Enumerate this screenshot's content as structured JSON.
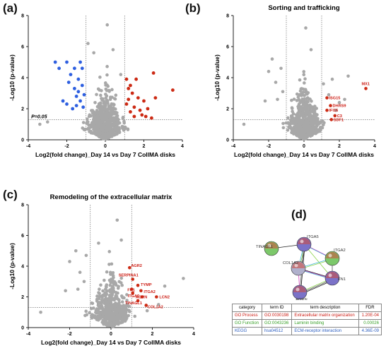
{
  "panels": {
    "a": {
      "letter": "(a)"
    },
    "b": {
      "letter": "(b)",
      "title": "Sorting and trafficking"
    },
    "c": {
      "letter": "(c)",
      "title": "Remodeling of the extracellular matrix"
    },
    "d": {
      "letter": "(d)"
    }
  },
  "common_axes": {
    "xlabel": "Log2(fold change)_Day 14 vs Day 7 CollMA disks",
    "ylabel": "-Log10 (p-value)",
    "xlim": [
      -4,
      4
    ],
    "ylim": [
      0,
      8
    ],
    "xticks": [
      "-4",
      "-2",
      "0",
      "2",
      "4"
    ],
    "yticks": [
      "0",
      "2",
      "4",
      "6",
      "8"
    ],
    "threshold_label": "P=0.05"
  },
  "colors": {
    "grey": "#a8a8a8",
    "down": "#2e5fe0",
    "up": "#cc2a14",
    "label_red": "#cc1b12"
  },
  "chart_data": [
    {
      "panel": "a",
      "type": "scatter",
      "title": "",
      "xlabel": "Log2(fold change)_Day 14 vs Day 7 CollMA disks",
      "ylabel": "-Log10 (p-value)",
      "xlim": [
        -4,
        4
      ],
      "ylim": [
        0,
        8
      ],
      "threshold_y": 1.3,
      "threshold_x": [
        -1,
        1
      ],
      "series": [
        {
          "name": "down",
          "color": "#2e5fe0",
          "points": [
            [
              -2.6,
              5.0
            ],
            [
              -2.4,
              4.6
            ],
            [
              -2.0,
              5.0
            ],
            [
              -1.9,
              3.7
            ],
            [
              -1.8,
              4.2
            ],
            [
              -1.6,
              4.6
            ],
            [
              -1.6,
              3.3
            ],
            [
              -1.5,
              2.8
            ],
            [
              -1.5,
              2.2
            ],
            [
              -1.4,
              3.9
            ],
            [
              -1.4,
              3.1
            ],
            [
              -1.3,
              5.0
            ],
            [
              -1.3,
              2.5
            ],
            [
              -1.2,
              4.6
            ],
            [
              -1.2,
              3.5
            ],
            [
              -1.15,
              2.1
            ],
            [
              -1.1,
              2.9
            ],
            [
              -2.2,
              2.5
            ],
            [
              -2.0,
              2.3
            ],
            [
              -1.7,
              2.0
            ]
          ]
        },
        {
          "name": "up",
          "color": "#cc2a14",
          "points": [
            [
              1.1,
              3.9
            ],
            [
              1.1,
              2.3
            ],
            [
              1.2,
              3.3
            ],
            [
              1.2,
              2.6
            ],
            [
              1.3,
              1.8
            ],
            [
              1.4,
              3.0
            ],
            [
              1.5,
              2.1
            ],
            [
              1.5,
              1.5
            ],
            [
              1.6,
              3.9
            ],
            [
              1.7,
              2.7
            ],
            [
              1.8,
              1.9
            ],
            [
              1.9,
              1.6
            ],
            [
              2.0,
              2.5
            ],
            [
              2.1,
              1.5
            ],
            [
              2.2,
              2.0
            ],
            [
              2.4,
              1.4
            ],
            [
              2.5,
              4.3
            ],
            [
              2.6,
              2.7
            ],
            [
              1.3,
              3.5
            ],
            [
              3.5,
              3.2
            ]
          ]
        }
      ]
    },
    {
      "panel": "b",
      "type": "scatter",
      "title": "Sorting and trafficking",
      "xlabel": "Log2(fold change)_Day 14 vs Day 7 CollMA disks",
      "ylabel": "-Log10 (p-value)",
      "xlim": [
        -4,
        4
      ],
      "ylim": [
        0,
        8
      ],
      "threshold_y": 1.3,
      "threshold_x": [
        -1,
        1
      ],
      "highlighted": [
        {
          "label": "MX1",
          "x": 3.5,
          "y": 3.3
        },
        {
          "label": "ISG15",
          "x": 1.3,
          "y": 2.7
        },
        {
          "label": "DHRS9",
          "x": 1.5,
          "y": 2.2
        },
        {
          "label": "IFI16",
          "x": 1.3,
          "y": 1.9
        },
        {
          "label": "C3",
          "x": 1.75,
          "y": 1.55
        },
        {
          "label": "SDF1",
          "x": 1.55,
          "y": 1.3
        }
      ]
    },
    {
      "panel": "c",
      "type": "scatter",
      "title": "Remodeling of the extracellular matrix",
      "xlabel": "Log2(fold change)_Day 14 vs Day 7 CollMA disks",
      "ylabel": "-Log10 (p-value)",
      "xlim": [
        -4,
        4
      ],
      "ylim": [
        0,
        8
      ],
      "threshold_y": 1.3,
      "threshold_x": [
        -1,
        1
      ],
      "highlighted": [
        {
          "label": "AGR2",
          "x": 0.9,
          "y": 3.9
        },
        {
          "label": "SERPINA1",
          "x": 1.05,
          "y": 3.15
        },
        {
          "label": "TYMP",
          "x": 1.3,
          "y": 2.75
        },
        {
          "label": "FN1",
          "x": 1.0,
          "y": 2.5
        },
        {
          "label": "ITGA2",
          "x": 1.45,
          "y": 2.4
        },
        {
          "label": "ITGA5",
          "x": 1.05,
          "y": 2.25
        },
        {
          "label": "AGRN",
          "x": 1.5,
          "y": 2.0
        },
        {
          "label": "LCN2",
          "x": 2.2,
          "y": 2.0
        },
        {
          "label": "TINAGL1",
          "x": 1.3,
          "y": 1.75
        },
        {
          "label": "COL1A2",
          "x": 1.7,
          "y": 1.45
        }
      ]
    }
  ],
  "network": {
    "nodes": [
      {
        "label": "TINAGL1",
        "color": "#7cc86a"
      },
      {
        "label": "ITGA5",
        "color": "#7b72c8"
      },
      {
        "label": "ITGA2",
        "color": "#7cc86a"
      },
      {
        "label": "COL1A2",
        "color": "#b0b0cc"
      },
      {
        "label": "FN1",
        "color": "#7b72c8"
      },
      {
        "label": "AGRN",
        "color": "#7b72c8"
      }
    ]
  },
  "enrichment_table": {
    "headers": [
      "category",
      "term ID",
      "term description",
      "FDR"
    ],
    "rows": [
      {
        "category": "GO Process",
        "term_id": "GO:0030198",
        "description": "Extracellular matrix organization",
        "fdr": "1.20E-04",
        "color": "#cc1b12"
      },
      {
        "category": "GO Function",
        "term_id": "GO:0043236",
        "description": "Laminin binding",
        "fdr": "0.00026",
        "color": "#3aa12a"
      },
      {
        "category": "KEGG",
        "term_id": "hsa04512",
        "description": "ECM-receptor interaction",
        "fdr": "4.36E-09",
        "color": "#2d5fc0"
      }
    ]
  }
}
